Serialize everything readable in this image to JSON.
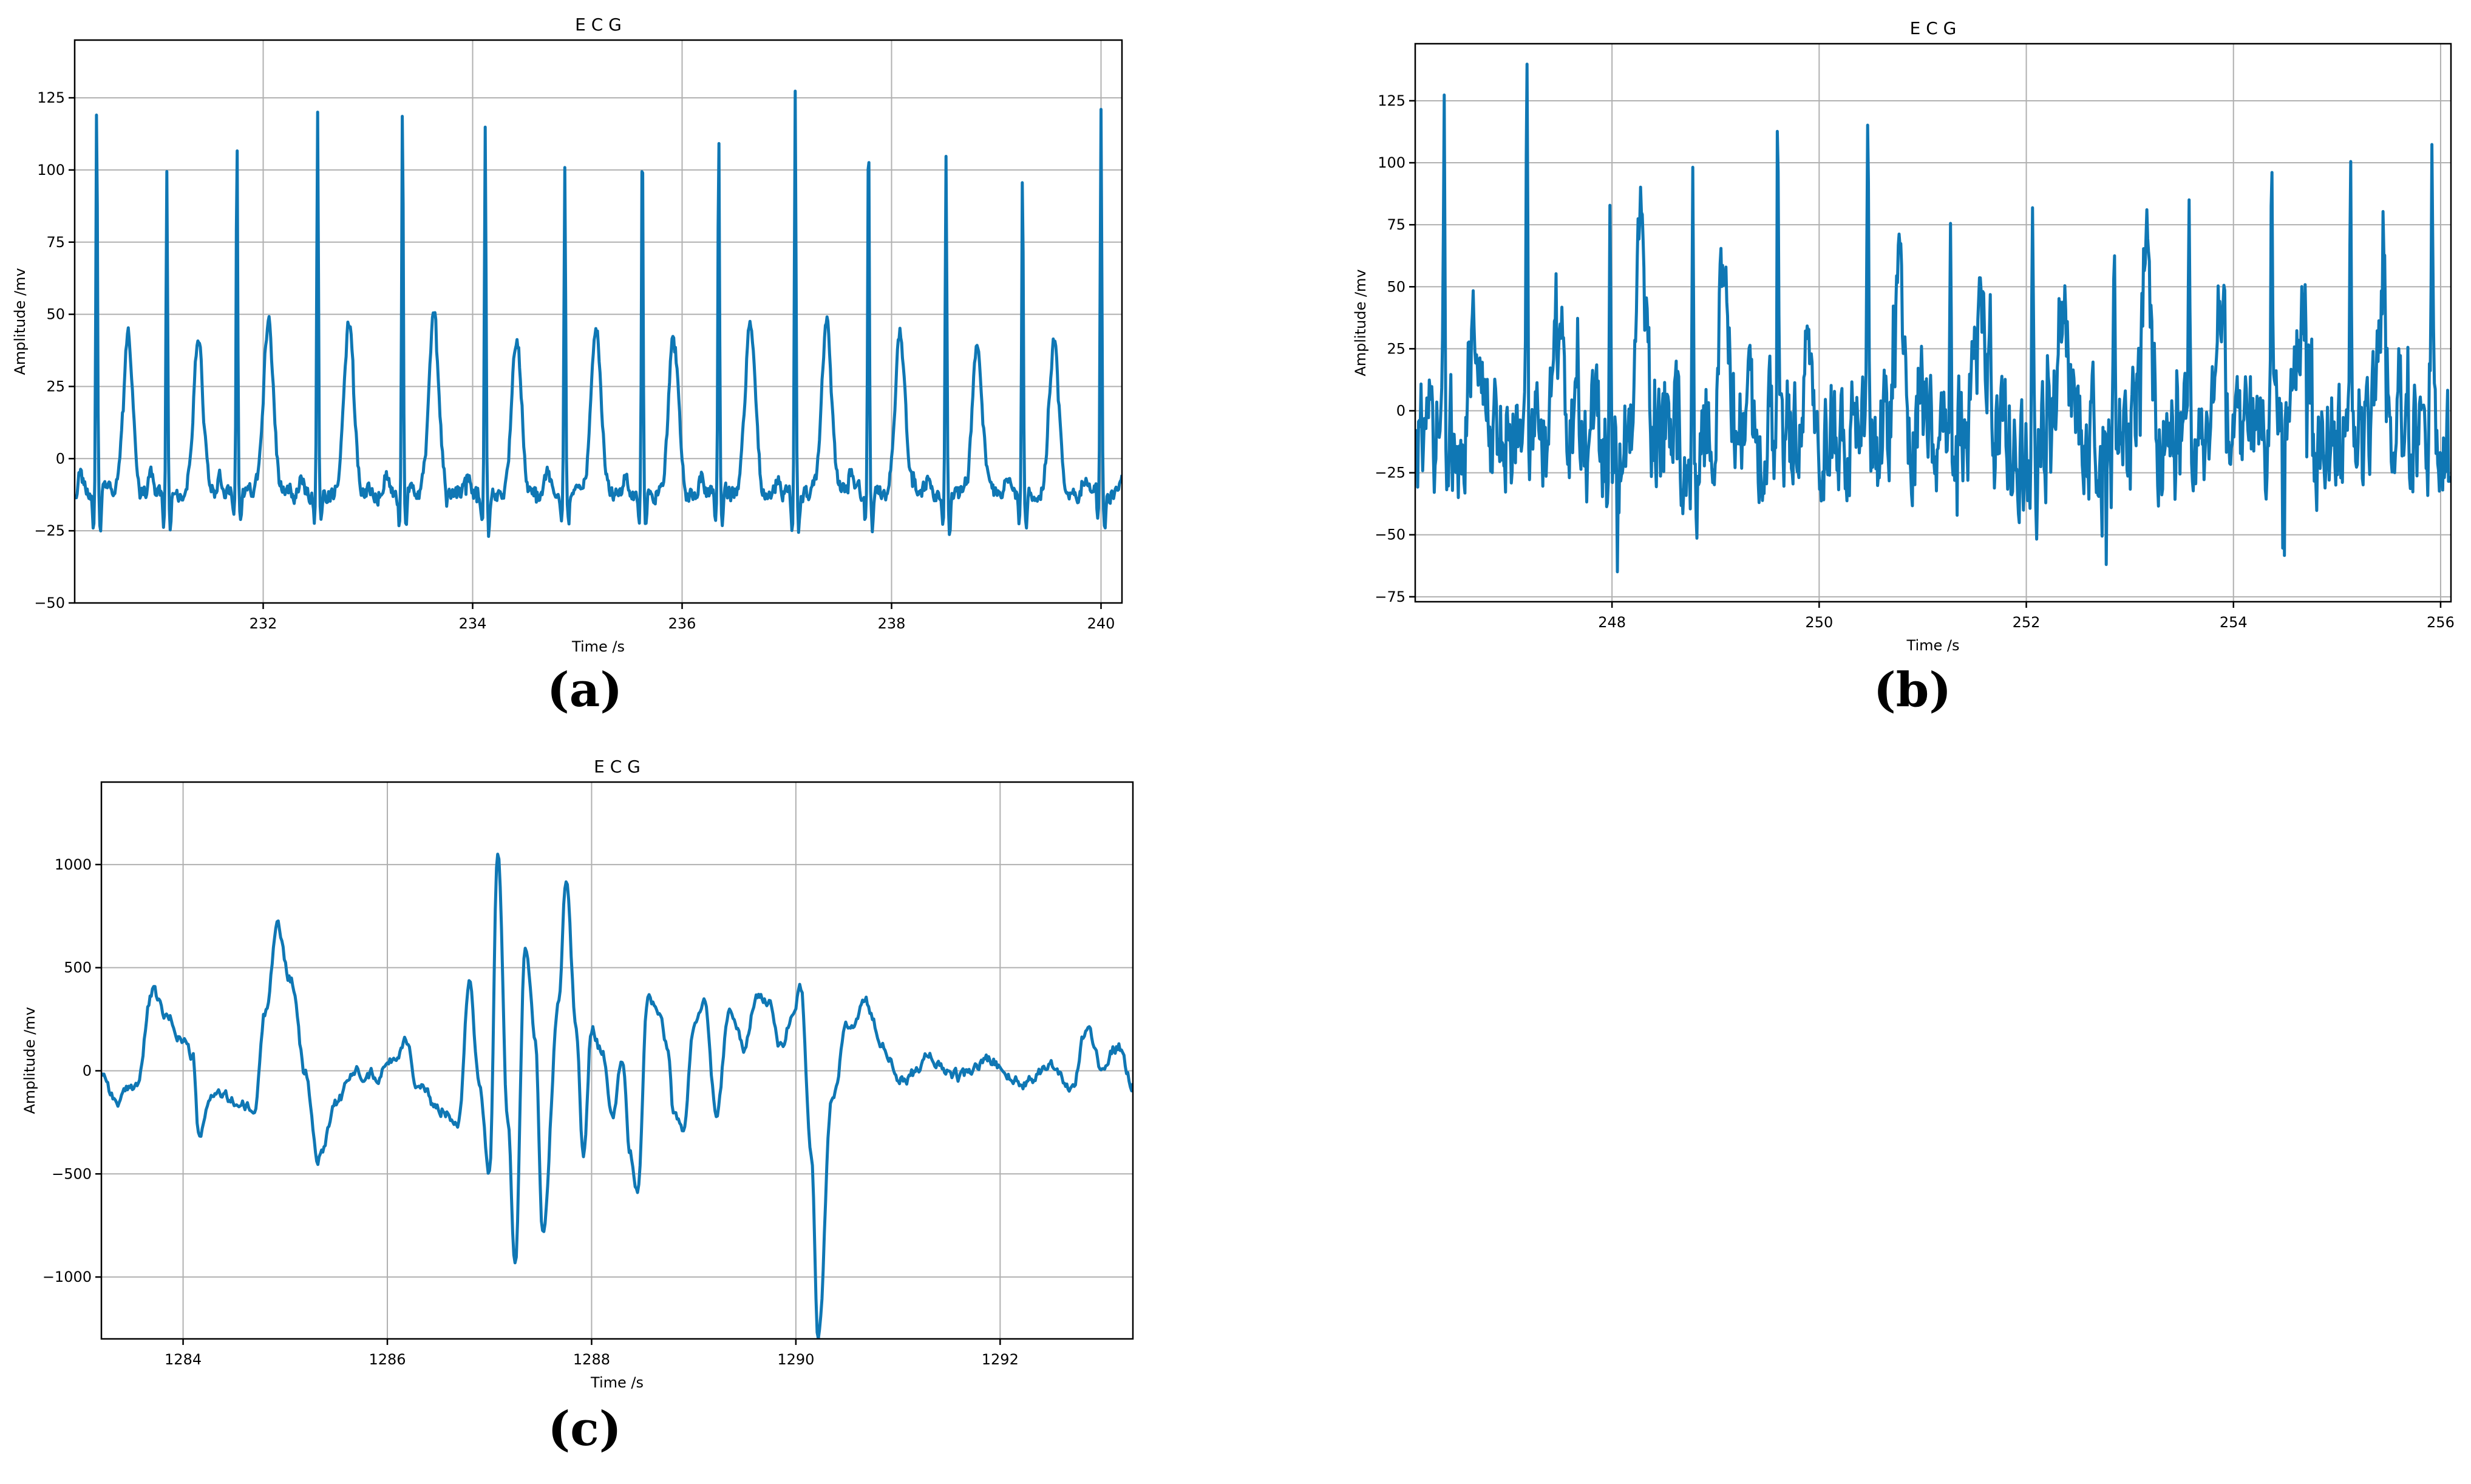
{
  "chart_data": [
    {
      "type": "line",
      "panel_label": "(a)",
      "title": "E C G",
      "xlabel": "Time /s",
      "ylabel": "Amplitude /mv",
      "xlim": [
        230.2,
        240.2
      ],
      "ylim": [
        -50,
        145
      ],
      "xticks": [
        232,
        234,
        236,
        238,
        240
      ],
      "yticks": [
        -50,
        -25,
        0,
        25,
        50,
        75,
        100,
        125
      ],
      "ytick_labels": [
        "−50",
        "−25",
        "0",
        "25",
        "50",
        "75",
        "100",
        "125"
      ],
      "grid": true,
      "color": "#0f77b4",
      "series": [
        {
          "beats": [
            {
              "r_time": 230.41,
              "r_peak": 122,
              "t_peak": 44
            },
            {
              "r_time": 231.08,
              "r_peak": 99,
              "t_peak": 42
            },
            {
              "r_time": 231.75,
              "r_peak": 114,
              "t_peak": 48
            },
            {
              "r_time": 232.52,
              "r_peak": 121,
              "t_peak": 48
            },
            {
              "r_time": 233.33,
              "r_peak": 126,
              "t_peak": 51
            },
            {
              "r_time": 234.12,
              "r_peak": 115,
              "t_peak": 43
            },
            {
              "r_time": 234.88,
              "r_peak": 99,
              "t_peak": 46
            },
            {
              "r_time": 235.62,
              "r_peak": 115,
              "t_peak": 43
            },
            {
              "r_time": 236.35,
              "r_peak": 114,
              "t_peak": 48
            },
            {
              "r_time": 237.08,
              "r_peak": 127,
              "t_peak": 48
            },
            {
              "r_time": 237.78,
              "r_peak": 118,
              "t_peak": 44
            },
            {
              "r_time": 238.52,
              "r_peak": 105,
              "t_peak": 40
            },
            {
              "r_time": 239.25,
              "r_peak": 101,
              "t_peak": 39
            },
            {
              "r_time": 240.0,
              "r_peak": 119,
              "t_peak": 46
            }
          ],
          "baseline": -12
        }
      ]
    },
    {
      "type": "line",
      "panel_label": "(b)",
      "title": "E C G",
      "xlabel": "Time /s",
      "ylabel": "Amplitude /mv",
      "xlim": [
        246.1,
        256.1
      ],
      "ylim": [
        -77,
        148
      ],
      "xticks": [
        248,
        250,
        252,
        254,
        256
      ],
      "yticks": [
        -75,
        -50,
        -25,
        0,
        25,
        50,
        75,
        100,
        125
      ],
      "ytick_labels": [
        "−75",
        "−50",
        "−25",
        "0",
        "25",
        "50",
        "75",
        "100",
        "125"
      ],
      "grid": true,
      "color": "#0f77b4",
      "series": [
        {
          "beats": [
            {
              "r_time": 246.38,
              "r_peak": 119,
              "t_peak": 43
            },
            {
              "r_time": 247.18,
              "r_peak": 140,
              "t_peak": 32
            },
            {
              "r_time": 247.98,
              "r_peak": 91,
              "t_peak": 62
            },
            {
              "r_time": 248.78,
              "r_peak": 104,
              "t_peak": 72
            },
            {
              "r_time": 249.6,
              "r_peak": 111,
              "t_peak": 43
            },
            {
              "r_time": 250.47,
              "r_peak": 118,
              "t_peak": 40
            },
            {
              "r_time": 251.27,
              "r_peak": 87,
              "t_peak": 48
            },
            {
              "r_time": 252.06,
              "r_peak": 106,
              "t_peak": 52
            },
            {
              "r_time": 252.85,
              "r_peak": 59,
              "t_peak": 63
            },
            {
              "r_time": 253.57,
              "r_peak": 98,
              "t_peak": 47
            },
            {
              "r_time": 254.37,
              "r_peak": 97,
              "t_peak": 49
            },
            {
              "r_time": 255.13,
              "r_peak": 84,
              "t_peak": 46
            },
            {
              "r_time": 255.92,
              "r_peak": 112,
              "t_peak": 28
            }
          ],
          "baseline": -10,
          "noise": 20
        }
      ]
    },
    {
      "type": "line",
      "panel_label": "(c)",
      "title": "E C G",
      "xlabel": "Time /s",
      "ylabel": "Amplitude /mv",
      "xlim": [
        1283.2,
        1293.3
      ],
      "ylim": [
        -1300,
        1400
      ],
      "xticks": [
        1284,
        1286,
        1288,
        1290,
        1292
      ],
      "yticks": [
        -1000,
        -500,
        0,
        500,
        1000
      ],
      "ytick_labels": [
        "−1000",
        "−500",
        "0",
        "500",
        "1000"
      ],
      "grid": true,
      "color": "#0f77b4",
      "series": [
        {
          "points": [
            [
              1283.2,
              0
            ],
            [
              1283.35,
              -150
            ],
            [
              1283.55,
              -60
            ],
            [
              1283.7,
              380
            ],
            [
              1283.85,
              250
            ],
            [
              1284.0,
              150
            ],
            [
              1284.1,
              60
            ],
            [
              1284.15,
              -330
            ],
            [
              1284.3,
              -100
            ],
            [
              1284.5,
              -150
            ],
            [
              1284.7,
              -200
            ],
            [
              1284.8,
              280
            ],
            [
              1284.92,
              700
            ],
            [
              1285.05,
              450
            ],
            [
              1285.2,
              -20
            ],
            [
              1285.32,
              -430
            ],
            [
              1285.5,
              -150
            ],
            [
              1285.7,
              0
            ],
            [
              1285.9,
              -20
            ],
            [
              1286.0,
              30
            ],
            [
              1286.1,
              80
            ],
            [
              1286.18,
              160
            ],
            [
              1286.3,
              -80
            ],
            [
              1286.5,
              -180
            ],
            [
              1286.7,
              -230
            ],
            [
              1286.8,
              450
            ],
            [
              1286.9,
              -40
            ],
            [
              1287.0,
              -500
            ],
            [
              1287.08,
              1060
            ],
            [
              1287.18,
              -250
            ],
            [
              1287.25,
              -950
            ],
            [
              1287.35,
              620
            ],
            [
              1287.45,
              150
            ],
            [
              1287.52,
              -800
            ],
            [
              1287.68,
              350
            ],
            [
              1287.75,
              920
            ],
            [
              1287.85,
              200
            ],
            [
              1287.92,
              -420
            ],
            [
              1288.0,
              220
            ],
            [
              1288.1,
              100
            ],
            [
              1288.2,
              -240
            ],
            [
              1288.3,
              50
            ],
            [
              1288.38,
              -400
            ],
            [
              1288.45,
              -600
            ],
            [
              1288.55,
              350
            ],
            [
              1288.65,
              300
            ],
            [
              1288.75,
              100
            ],
            [
              1288.8,
              -200
            ],
            [
              1288.9,
              -280
            ],
            [
              1289.0,
              200
            ],
            [
              1289.1,
              350
            ],
            [
              1289.22,
              -200
            ],
            [
              1289.35,
              310
            ],
            [
              1289.5,
              100
            ],
            [
              1289.6,
              350
            ],
            [
              1289.75,
              350
            ],
            [
              1289.85,
              120
            ],
            [
              1289.95,
              240
            ],
            [
              1290.05,
              400
            ],
            [
              1290.15,
              -400
            ],
            [
              1290.22,
              -1300
            ],
            [
              1290.35,
              -150
            ],
            [
              1290.5,
              200
            ],
            [
              1290.7,
              320
            ],
            [
              1290.85,
              100
            ],
            [
              1291.05,
              -50
            ],
            [
              1291.3,
              60
            ],
            [
              1291.6,
              -30
            ],
            [
              1291.9,
              50
            ],
            [
              1292.2,
              -60
            ],
            [
              1292.5,
              30
            ],
            [
              1292.7,
              -80
            ],
            [
              1292.85,
              200
            ],
            [
              1293.0,
              20
            ],
            [
              1293.15,
              120
            ],
            [
              1293.3,
              -60
            ]
          ]
        }
      ]
    }
  ]
}
